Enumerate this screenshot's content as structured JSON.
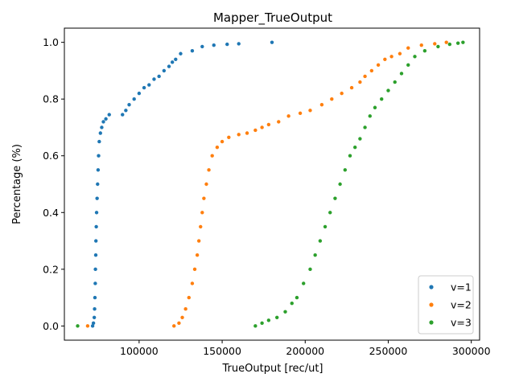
{
  "chart_data": {
    "type": "scatter",
    "title": "Mapper_TrueOutput",
    "xlabel": "TrueOutput [rec/ut]",
    "ylabel": "Percentage (%)",
    "xlim": [
      55000,
      305000
    ],
    "ylim": [
      -0.05,
      1.05
    ],
    "x_ticks": [
      100000,
      150000,
      200000,
      250000,
      300000
    ],
    "y_ticks": [
      0.0,
      0.2,
      0.4,
      0.6,
      0.8,
      1.0
    ],
    "x_tick_labels": [
      "100000",
      "150000",
      "200000",
      "250000",
      "300000"
    ],
    "y_tick_labels": [
      "0.0",
      "0.2",
      "0.4",
      "0.6",
      "0.8",
      "1.0"
    ],
    "grid": false,
    "legend_position": "bottom-right",
    "series": [
      {
        "name": "v=1",
        "color": "#1f77b4",
        "points": [
          [
            72000,
            0.0
          ],
          [
            72500,
            0.01
          ],
          [
            73000,
            0.03
          ],
          [
            73200,
            0.06
          ],
          [
            73400,
            0.1
          ],
          [
            73600,
            0.15
          ],
          [
            73700,
            0.2
          ],
          [
            73900,
            0.25
          ],
          [
            74000,
            0.3
          ],
          [
            74200,
            0.35
          ],
          [
            74400,
            0.4
          ],
          [
            74700,
            0.45
          ],
          [
            75000,
            0.5
          ],
          [
            75300,
            0.55
          ],
          [
            75600,
            0.6
          ],
          [
            76000,
            0.65
          ],
          [
            76700,
            0.68
          ],
          [
            77500,
            0.7
          ],
          [
            78500,
            0.72
          ],
          [
            80000,
            0.73
          ],
          [
            82000,
            0.745
          ],
          [
            90000,
            0.745
          ],
          [
            92000,
            0.76
          ],
          [
            94000,
            0.78
          ],
          [
            97000,
            0.8
          ],
          [
            100000,
            0.82
          ],
          [
            103000,
            0.84
          ],
          [
            106000,
            0.85
          ],
          [
            109000,
            0.87
          ],
          [
            112000,
            0.88
          ],
          [
            115000,
            0.9
          ],
          [
            118000,
            0.915
          ],
          [
            120000,
            0.93
          ],
          [
            122000,
            0.94
          ],
          [
            125000,
            0.96
          ],
          [
            132000,
            0.97
          ],
          [
            138000,
            0.985
          ],
          [
            145000,
            0.99
          ],
          [
            153000,
            0.993
          ],
          [
            160000,
            0.995
          ],
          [
            180000,
            1.0
          ]
        ]
      },
      {
        "name": "v=2",
        "color": "#ff7f0e",
        "points": [
          [
            69000,
            0.0
          ],
          [
            121000,
            0.0
          ],
          [
            124000,
            0.01
          ],
          [
            126000,
            0.03
          ],
          [
            128000,
            0.06
          ],
          [
            130000,
            0.1
          ],
          [
            132000,
            0.15
          ],
          [
            133500,
            0.2
          ],
          [
            135000,
            0.25
          ],
          [
            136000,
            0.3
          ],
          [
            137000,
            0.35
          ],
          [
            138000,
            0.4
          ],
          [
            139000,
            0.45
          ],
          [
            140500,
            0.5
          ],
          [
            142000,
            0.55
          ],
          [
            144000,
            0.6
          ],
          [
            147000,
            0.63
          ],
          [
            150000,
            0.65
          ],
          [
            154000,
            0.665
          ],
          [
            160000,
            0.675
          ],
          [
            165000,
            0.68
          ],
          [
            170000,
            0.69
          ],
          [
            174000,
            0.7
          ],
          [
            178000,
            0.71
          ],
          [
            184000,
            0.72
          ],
          [
            190000,
            0.74
          ],
          [
            197000,
            0.75
          ],
          [
            203000,
            0.76
          ],
          [
            210000,
            0.78
          ],
          [
            216000,
            0.8
          ],
          [
            222000,
            0.82
          ],
          [
            228000,
            0.84
          ],
          [
            233000,
            0.86
          ],
          [
            236000,
            0.88
          ],
          [
            240000,
            0.9
          ],
          [
            244000,
            0.92
          ],
          [
            248000,
            0.94
          ],
          [
            252000,
            0.95
          ],
          [
            257000,
            0.96
          ],
          [
            262000,
            0.98
          ],
          [
            270000,
            0.99
          ],
          [
            278000,
            0.995
          ],
          [
            285000,
            1.0
          ]
        ]
      },
      {
        "name": "v=3",
        "color": "#2ca02c",
        "points": [
          [
            63000,
            0.0
          ],
          [
            170000,
            0.0
          ],
          [
            174000,
            0.01
          ],
          [
            178000,
            0.02
          ],
          [
            183000,
            0.03
          ],
          [
            188000,
            0.05
          ],
          [
            192000,
            0.08
          ],
          [
            195000,
            0.1
          ],
          [
            199000,
            0.15
          ],
          [
            203000,
            0.2
          ],
          [
            206000,
            0.25
          ],
          [
            209000,
            0.3
          ],
          [
            212000,
            0.35
          ],
          [
            215000,
            0.4
          ],
          [
            218000,
            0.45
          ],
          [
            221000,
            0.5
          ],
          [
            224000,
            0.55
          ],
          [
            227000,
            0.6
          ],
          [
            230000,
            0.63
          ],
          [
            233000,
            0.66
          ],
          [
            236000,
            0.7
          ],
          [
            239000,
            0.74
          ],
          [
            242000,
            0.77
          ],
          [
            246000,
            0.8
          ],
          [
            250000,
            0.83
          ],
          [
            254000,
            0.86
          ],
          [
            258000,
            0.89
          ],
          [
            262000,
            0.92
          ],
          [
            266000,
            0.95
          ],
          [
            272000,
            0.97
          ],
          [
            280000,
            0.985
          ],
          [
            287000,
            0.993
          ],
          [
            292000,
            0.997
          ],
          [
            295000,
            1.0
          ]
        ]
      }
    ]
  }
}
